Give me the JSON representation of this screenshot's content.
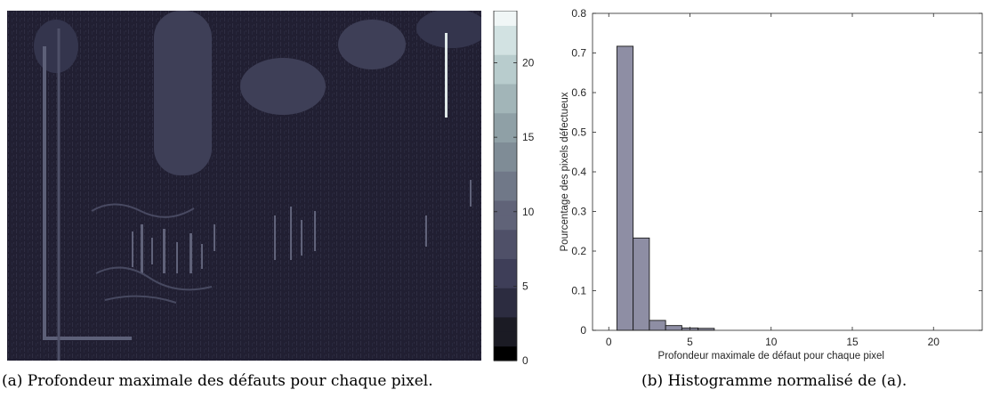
{
  "captions": {
    "a": "(a) Profondeur maximale des défauts pour chaque pixel.",
    "b": "(b) Histogramme normalisé de (a)."
  },
  "colors": {
    "image_background": "#1f1e30",
    "bar_fill": "#8e8ea4",
    "bar_edge": "#1a1a1a",
    "colormap": [
      "#000000",
      "#1b1b24",
      "#2c2c40",
      "#3e3e58",
      "#4f5068",
      "#606378",
      "#707888",
      "#7f8c96",
      "#8fa0a6",
      "#a2b5b8",
      "#b8cccd",
      "#d2e2e2",
      "#f0f6f6"
    ]
  },
  "chart_data": [
    {
      "type": "heatmap",
      "title": "",
      "colorbar": {
        "range": [
          0,
          23.5
        ],
        "ticks": [
          0,
          5,
          10,
          15,
          20
        ],
        "levels": 24
      }
    },
    {
      "type": "bar",
      "title": "",
      "xlabel": "Profondeur maximale de défaut pour chaque pixel",
      "ylabel": "Pourcentage des pixels défectueux",
      "xlim": [
        -1,
        23
      ],
      "ylim": [
        0,
        0.8
      ],
      "xticks": [
        0,
        5,
        10,
        15,
        20
      ],
      "yticks": [
        0,
        0.1,
        0.2,
        0.3,
        0.4,
        0.5,
        0.6,
        0.7,
        0.8
      ],
      "bin_width": 1,
      "x": [
        1,
        2,
        3,
        4,
        5,
        6
      ],
      "values": [
        0.717,
        0.233,
        0.025,
        0.012,
        0.006,
        0.005
      ]
    }
  ]
}
